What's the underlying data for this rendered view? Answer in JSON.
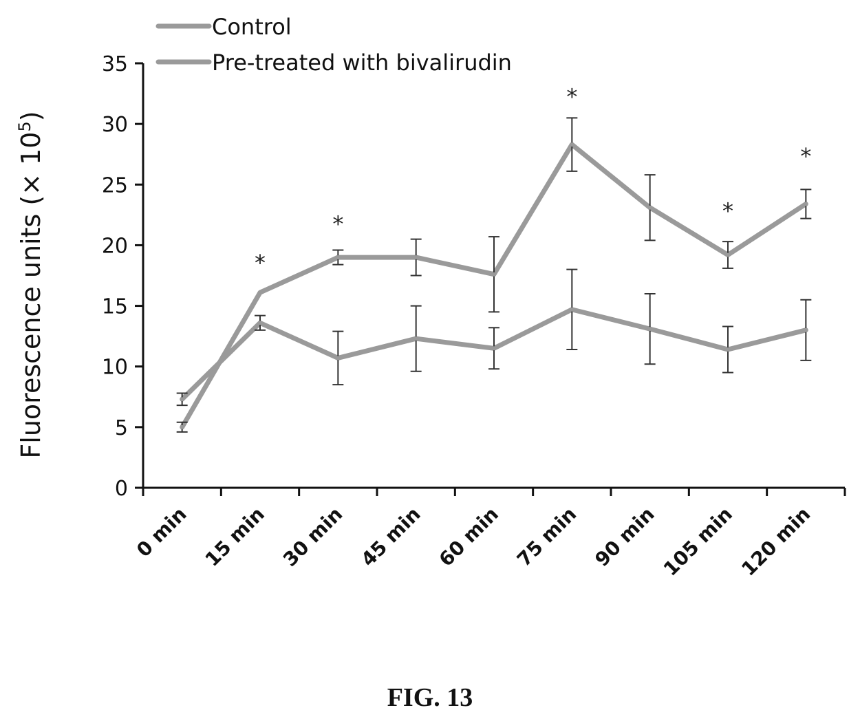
{
  "chart_data": {
    "type": "line",
    "categories": [
      "0 min",
      "15 min",
      "30 min",
      "45 min",
      "60 min",
      "75 min",
      "90 min",
      "105 min",
      "120 min"
    ],
    "ylabel": "Fluorescence units (× 10",
    "ylabel_exponent": "5",
    "ylabel_close": ")",
    "ylim": [
      0,
      35
    ],
    "yticks": [
      0,
      5,
      10,
      15,
      20,
      25,
      30,
      35
    ],
    "grid": false,
    "legend_position": "top-left",
    "series": [
      {
        "name": "Control",
        "values": [
          7.3,
          13.6,
          10.7,
          12.3,
          11.5,
          14.7,
          13.1,
          11.4,
          13.0
        ],
        "errors": [
          0.5,
          0.6,
          2.2,
          2.7,
          1.7,
          3.3,
          2.9,
          1.9,
          2.5
        ]
      },
      {
        "name": "Pre-treated with bivalirudin",
        "values": [
          5.0,
          16.1,
          19.0,
          19.0,
          17.6,
          28.3,
          23.1,
          19.2,
          23.4
        ],
        "errors": [
          0.4,
          0.0,
          0.6,
          1.5,
          3.1,
          2.2,
          2.7,
          1.1,
          1.2
        ]
      }
    ],
    "annotations": [
      {
        "text": "*",
        "category_index": 1,
        "y": 18.6
      },
      {
        "text": "*",
        "category_index": 2,
        "y": 21.8
      },
      {
        "text": "*",
        "category_index": 5,
        "y": 32.3
      },
      {
        "text": "*",
        "category_index": 7,
        "y": 22.9
      },
      {
        "text": "*",
        "category_index": 8,
        "y": 27.4
      }
    ],
    "colors": {
      "line": "#9a9a9a",
      "error_bar": "#333333",
      "axis": "#111111"
    }
  },
  "caption": "FIG. 13"
}
